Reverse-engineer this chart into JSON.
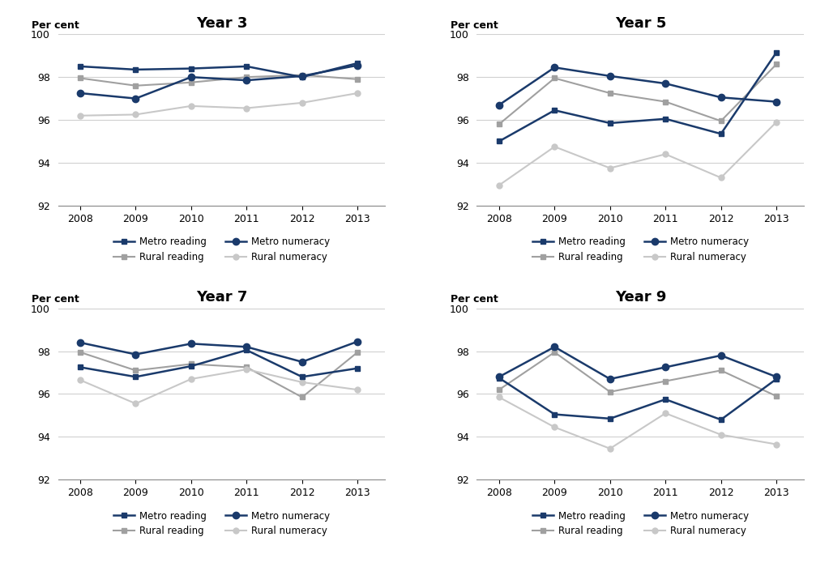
{
  "years": [
    2008,
    2009,
    2010,
    2011,
    2012,
    2013
  ],
  "subplots": [
    {
      "title": "Year 3",
      "metro_reading": [
        98.5,
        98.35,
        98.4,
        98.5,
        98.0,
        98.65
      ],
      "metro_numeracy": [
        97.25,
        97.0,
        98.0,
        97.85,
        98.05,
        98.55
      ],
      "rural_reading": [
        97.95,
        97.6,
        97.75,
        98.0,
        98.1,
        97.9
      ],
      "rural_numeracy": [
        96.2,
        96.25,
        96.65,
        96.55,
        96.8,
        97.25
      ]
    },
    {
      "title": "Year 5",
      "metro_reading": [
        95.0,
        96.45,
        95.85,
        96.05,
        95.35,
        99.15
      ],
      "metro_numeracy": [
        96.7,
        98.45,
        98.05,
        97.7,
        97.05,
        96.85
      ],
      "rural_reading": [
        95.8,
        97.95,
        97.25,
        96.85,
        95.95,
        98.6
      ],
      "rural_numeracy": [
        92.95,
        94.75,
        93.75,
        94.4,
        93.3,
        95.9
      ]
    },
    {
      "title": "Year 7",
      "metro_reading": [
        97.25,
        96.8,
        97.3,
        98.05,
        96.8,
        97.2
      ],
      "metro_numeracy": [
        98.4,
        97.85,
        98.35,
        98.2,
        97.5,
        98.45
      ],
      "rural_reading": [
        97.95,
        97.1,
        97.4,
        97.25,
        95.85,
        97.95
      ],
      "rural_numeracy": [
        96.65,
        95.55,
        96.7,
        97.15,
        96.55,
        96.2
      ]
    },
    {
      "title": "Year 9",
      "metro_reading": [
        96.75,
        95.05,
        94.85,
        95.75,
        94.8,
        96.7
      ],
      "metro_numeracy": [
        96.8,
        98.2,
        96.7,
        97.25,
        97.8,
        96.8
      ],
      "rural_reading": [
        96.2,
        97.95,
        96.1,
        96.6,
        97.1,
        95.9
      ],
      "rural_numeracy": [
        95.85,
        94.45,
        93.45,
        95.1,
        94.1,
        93.65
      ]
    }
  ],
  "metro_reading_color": "#1a3a6b",
  "metro_numeracy_color": "#1a3a6b",
  "rural_reading_color": "#a0a0a0",
  "rural_numeracy_color": "#c8c8c8",
  "ylim": [
    92,
    100
  ],
  "yticks": [
    92,
    94,
    96,
    98,
    100
  ],
  "per_cent_label": "Per cent",
  "background_color": "#ffffff",
  "legend_entries": [
    [
      "Metro reading",
      "Rural reading"
    ],
    [
      "Metro numeracy",
      "Rural numeracy"
    ]
  ]
}
